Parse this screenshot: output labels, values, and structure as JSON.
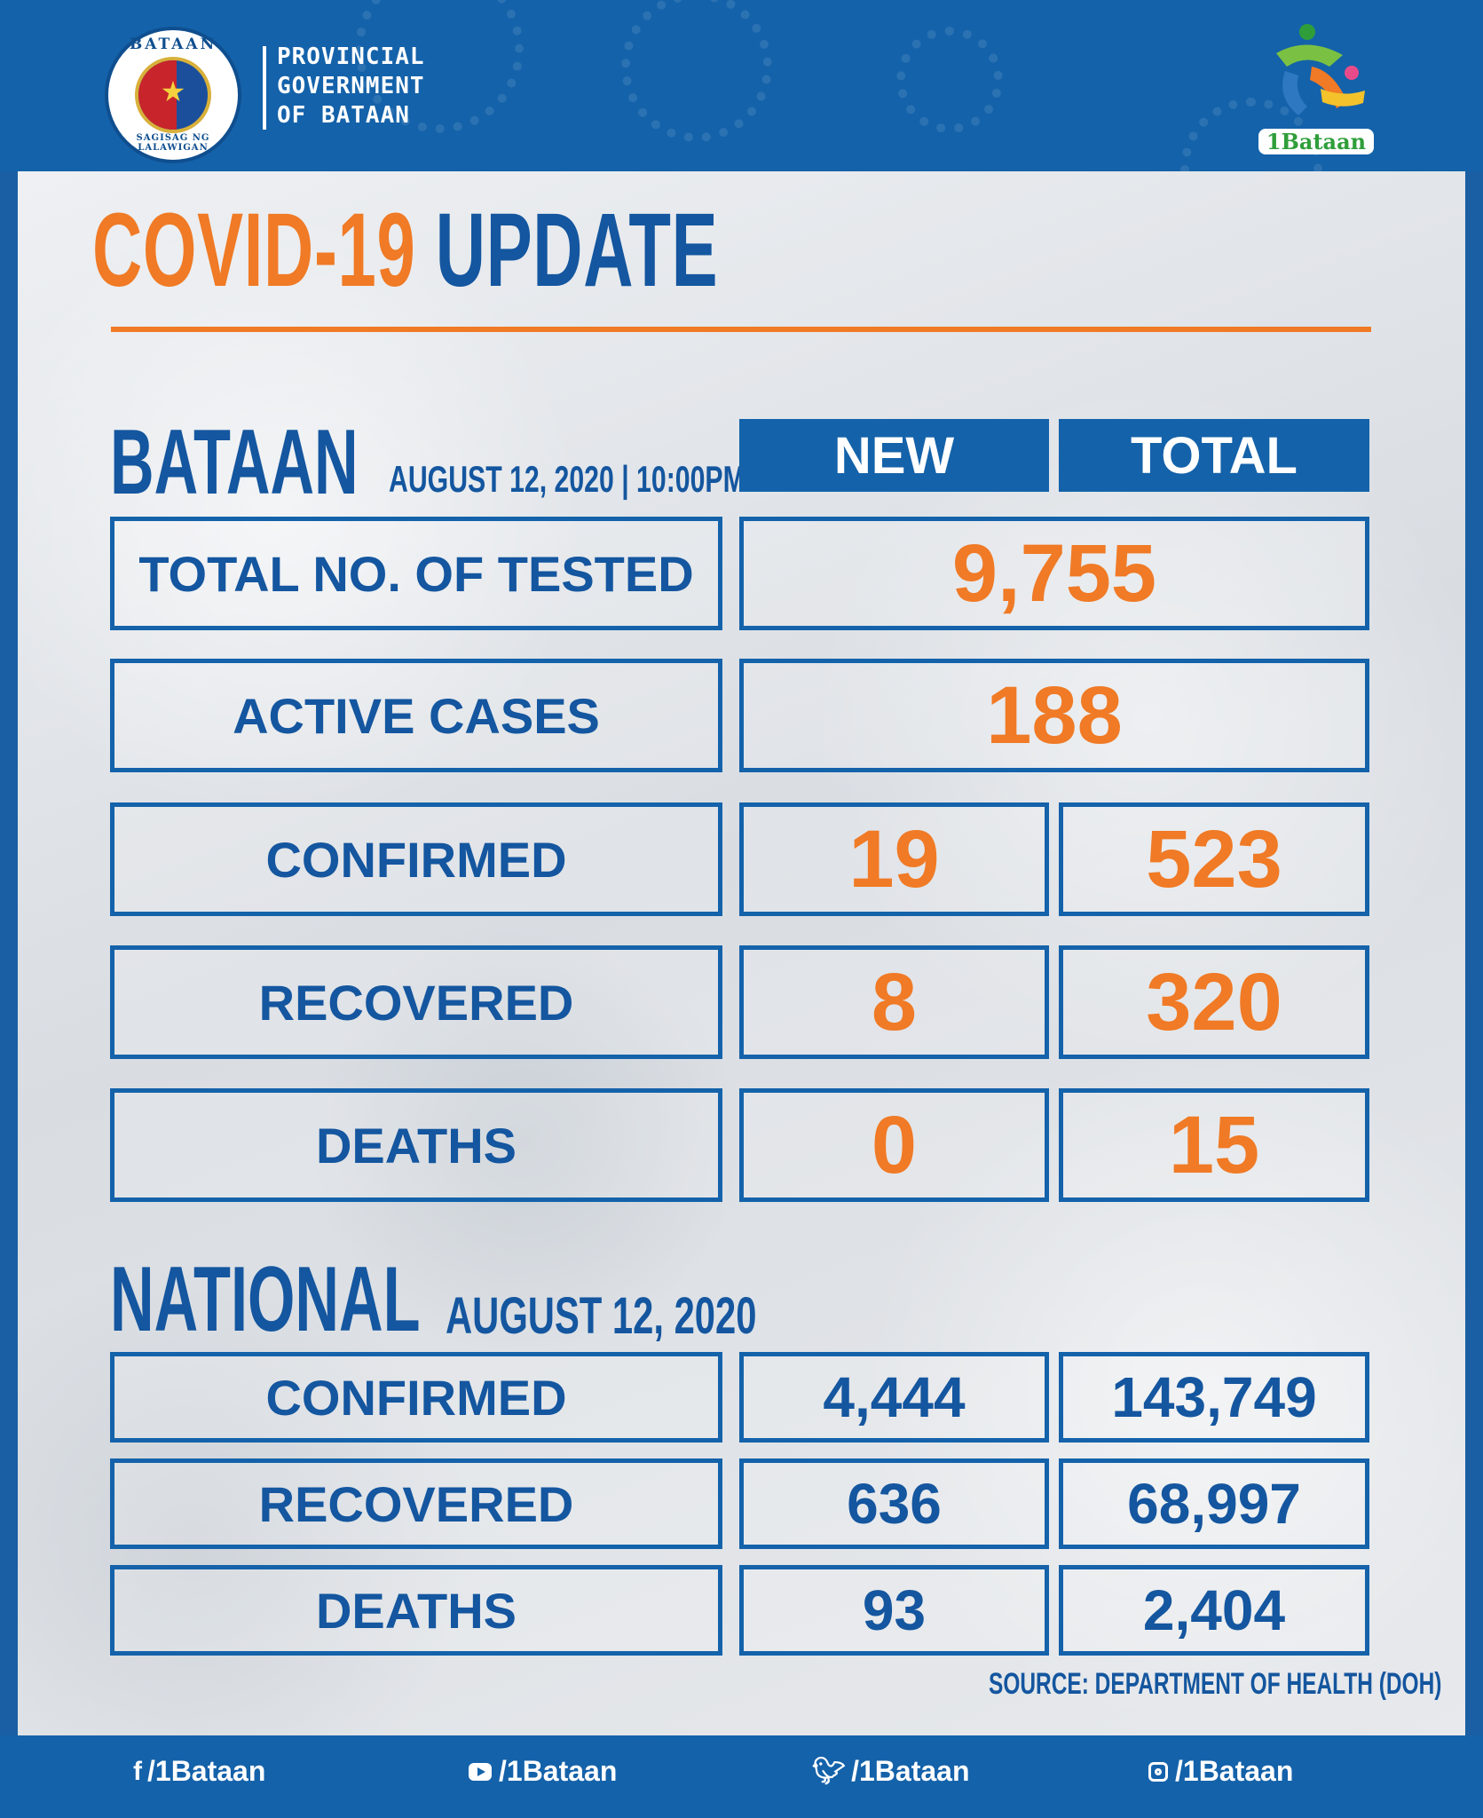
{
  "header": {
    "seal_ring_top": "BATAAN",
    "seal_ring_bottom": "SAGISAG NG LALAWIGAN",
    "gov_line1": "PROVINCIAL",
    "gov_line2": "GOVERNMENT",
    "gov_line3": "OF BATAAN",
    "brand_logo_text": "1Bataan"
  },
  "title": {
    "part1": "COVID-19",
    "part2": "UPDATE"
  },
  "bataan": {
    "heading": "BATAAN",
    "date": "AUGUST 12, 2020 | 10:00PM",
    "col_new": "NEW",
    "col_total": "TOTAL",
    "tested_label": "TOTAL NO. OF TESTED",
    "tested_value": "9,755",
    "active_label": "ACTIVE CASES",
    "active_value": "188",
    "rows": [
      {
        "label": "CONFIRMED",
        "new": "19",
        "total": "523"
      },
      {
        "label": "RECOVERED",
        "new": "8",
        "total": "320"
      },
      {
        "label": "DEATHS",
        "new": "0",
        "total": "15"
      }
    ]
  },
  "national": {
    "heading": "NATIONAL",
    "date": "AUGUST 12, 2020",
    "rows": [
      {
        "label": "CONFIRMED",
        "new": "4,444",
        "total": "143,749"
      },
      {
        "label": "RECOVERED",
        "new": "636",
        "total": "68,997"
      },
      {
        "label": "DEATHS",
        "new": "93",
        "total": "2,404"
      }
    ]
  },
  "source": "SOURCE: DEPARTMENT OF HEALTH (DOH)",
  "footer": {
    "facebook": "/1Bataan",
    "youtube": "/1Bataan",
    "twitter": "/1Bataan",
    "instagram": "/1Bataan"
  },
  "colors": {
    "brand_blue": "#1462aa",
    "accent_orange": "#f07a25"
  }
}
